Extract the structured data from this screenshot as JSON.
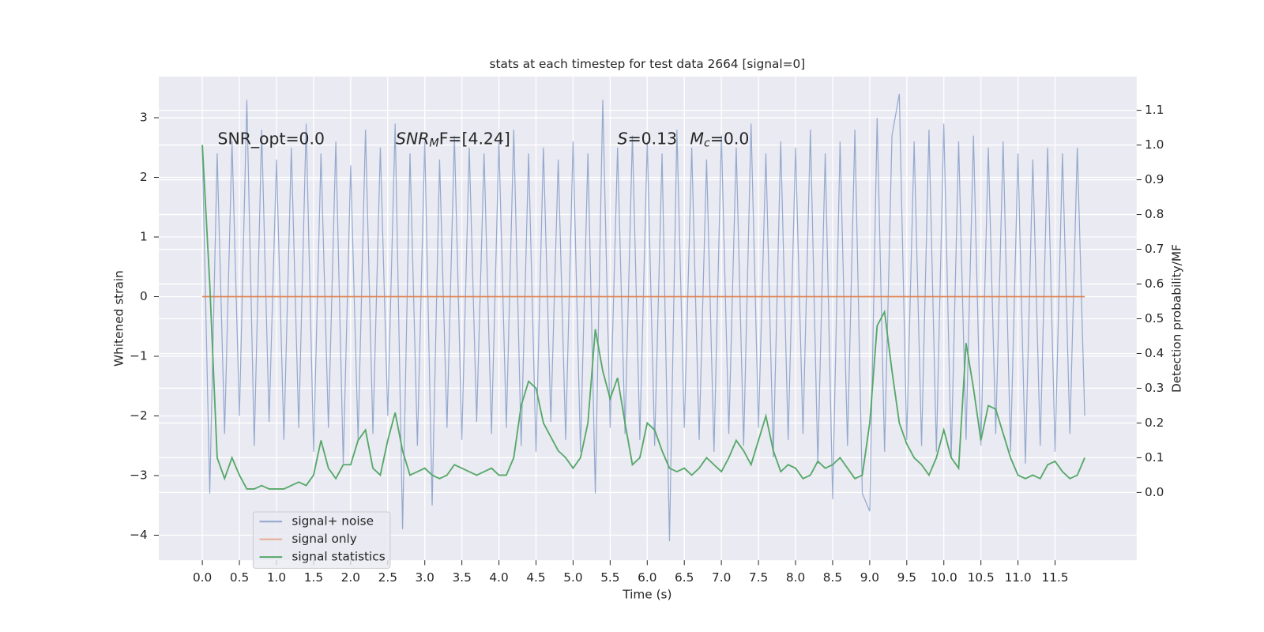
{
  "chart_data": {
    "type": "line",
    "title": "stats at each timestep for test data 2664 [signal=0]",
    "xlabel": "Time (s)",
    "ylabel": "Whitened strain",
    "y2label": "Detection probability/MF",
    "annotations": [
      [
        "SNR_opt=0.0"
      ],
      [
        "SNR",
        "M",
        "F=[4.24]"
      ],
      [
        "S",
        "=0.13",
        "M",
        "c",
        "=0.0"
      ]
    ],
    "xlim": [
      -0.587,
      12.6
    ],
    "ylim": [
      -4.42,
      3.69
    ],
    "y2lim": [
      -0.195,
      1.197
    ],
    "xticks": [
      {
        "value": 0,
        "label": "0.0"
      },
      0.5,
      {
        "value": 1,
        "label": "1.0"
      },
      1.5,
      {
        "value": 2,
        "label": "2.0"
      },
      2.5,
      {
        "value": 3,
        "label": "3.0"
      },
      3.5,
      {
        "value": 4,
        "label": "4.0"
      },
      4.5,
      {
        "value": 5,
        "label": "5.0"
      },
      5.5,
      {
        "value": 6,
        "label": "6.0"
      },
      6.5,
      {
        "value": 7,
        "label": "7.0"
      },
      7.5,
      {
        "value": 8,
        "label": "8.0"
      },
      8.5,
      {
        "value": 9,
        "label": "9.0"
      },
      9.5,
      {
        "value": 10,
        "label": "10.0"
      },
      10.5,
      {
        "value": 11,
        "label": "11.0"
      },
      11.5
    ],
    "yticks": [
      {
        "value": -4,
        "label": "−4"
      },
      {
        "value": -3,
        "label": "−3"
      },
      {
        "value": -2,
        "label": "−2"
      },
      {
        "value": -1,
        "label": "−1"
      },
      0,
      1,
      2,
      3
    ],
    "y2ticks": [
      {
        "value": 0,
        "label": "0.0"
      },
      0.1,
      0.2,
      0.3,
      0.4,
      0.5,
      0.6,
      0.7,
      0.8,
      0.9,
      {
        "value": 1,
        "label": "1.0"
      },
      1.1
    ],
    "grid": true,
    "legend": "lower left",
    "x": [
      0.0,
      0.1,
      0.2,
      0.3,
      0.4,
      0.5,
      0.6,
      0.7,
      0.8,
      0.9,
      1.0,
      1.1,
      1.2,
      1.3,
      1.4,
      1.5,
      1.6,
      1.7,
      1.8,
      1.9,
      2.0,
      2.1,
      2.2,
      2.3,
      2.4,
      2.5,
      2.6,
      2.7,
      2.8,
      2.9,
      3.0,
      3.1,
      3.2,
      3.3,
      3.4,
      3.5,
      3.6,
      3.7,
      3.8,
      3.9,
      4.0,
      4.1,
      4.2,
      4.3,
      4.4,
      4.5,
      4.6,
      4.7,
      4.8,
      4.9,
      5.0,
      5.1,
      5.2,
      5.3,
      5.4,
      5.5,
      5.6,
      5.7,
      5.8,
      5.9,
      6.0,
      6.1,
      6.2,
      6.3,
      6.4,
      6.5,
      6.6,
      6.7,
      6.8,
      6.9,
      7.0,
      7.1,
      7.2,
      7.3,
      7.4,
      7.5,
      7.6,
      7.7,
      7.8,
      7.9,
      8.0,
      8.1,
      8.2,
      8.3,
      8.4,
      8.5,
      8.6,
      8.7,
      8.8,
      8.9,
      9.0,
      9.1,
      9.2,
      9.3,
      9.4,
      9.5,
      9.6,
      9.7,
      9.8,
      9.9,
      10.0,
      10.1,
      10.2,
      10.3,
      10.4,
      10.5,
      10.6,
      10.7,
      10.8,
      10.9,
      11.0,
      11.1,
      11.2,
      11.3,
      11.4,
      11.5,
      11.6,
      11.7,
      11.8,
      11.9
    ],
    "series": [
      {
        "name": "signal+ noise",
        "color": "#4c72b0",
        "values": [
          2.5,
          -3.3,
          2.4,
          -2.3,
          2.6,
          -2.0,
          3.3,
          -2.5,
          2.8,
          -2.1,
          2.3,
          -2.4,
          2.5,
          -2.2,
          2.9,
          -2.6,
          2.4,
          -2.2,
          2.6,
          -2.8,
          2.2,
          -2.4,
          2.8,
          -2.3,
          2.5,
          -2.0,
          2.9,
          -3.9,
          2.4,
          -2.5,
          2.6,
          -3.5,
          2.3,
          -2.2,
          2.7,
          -2.4,
          2.5,
          -2.1,
          2.4,
          -2.3,
          2.6,
          -2.2,
          2.8,
          -2.5,
          2.4,
          -2.6,
          2.5,
          -2.1,
          2.3,
          -2.4,
          2.6,
          -2.6,
          2.4,
          -3.3,
          3.3,
          -2.2,
          2.5,
          -2.3,
          2.7,
          -2.4,
          2.6,
          -2.5,
          2.4,
          -4.1,
          2.8,
          -2.2,
          2.5,
          -2.4,
          2.3,
          -2.6,
          2.7,
          -2.3,
          2.5,
          -2.5,
          2.9,
          -2.2,
          2.4,
          -2.7,
          2.6,
          -2.4,
          2.5,
          -2.3,
          2.8,
          -2.8,
          2.4,
          -3.4,
          2.6,
          -2.5,
          2.8,
          -3.3,
          -3.6,
          3.0,
          -2.6,
          2.7,
          3.4,
          -2.4,
          2.6,
          -2.5,
          2.8,
          -2.6,
          2.9,
          -2.7,
          2.6,
          -2.4,
          2.7,
          -2.5,
          2.5,
          -2.3,
          2.6,
          -2.6,
          2.4,
          -2.8,
          2.3,
          -2.5,
          2.5,
          -2.6,
          2.4,
          -2.3,
          2.5,
          -2.0
        ]
      },
      {
        "name": "signal only",
        "color": "#dd8452",
        "values": [
          0,
          0,
          0,
          0,
          0,
          0,
          0,
          0,
          0,
          0,
          0,
          0,
          0,
          0,
          0,
          0,
          0,
          0,
          0,
          0,
          0,
          0,
          0,
          0,
          0,
          0,
          0,
          0,
          0,
          0,
          0,
          0,
          0,
          0,
          0,
          0,
          0,
          0,
          0,
          0,
          0,
          0,
          0,
          0,
          0,
          0,
          0,
          0,
          0,
          0,
          0,
          0,
          0,
          0,
          0,
          0,
          0,
          0,
          0,
          0,
          0,
          0,
          0,
          0,
          0,
          0,
          0,
          0,
          0,
          0,
          0,
          0,
          0,
          0,
          0,
          0,
          0,
          0,
          0,
          0,
          0,
          0,
          0,
          0,
          0,
          0,
          0,
          0,
          0,
          0,
          0,
          0,
          0,
          0,
          0,
          0,
          0,
          0,
          0,
          0,
          0,
          0,
          0,
          0,
          0,
          0,
          0,
          0,
          0,
          0,
          0,
          0,
          0,
          0,
          0,
          0,
          0,
          0,
          0,
          0
        ]
      },
      {
        "name": "signal statistics",
        "color": "#55a868",
        "axis": "y2",
        "values": [
          1.0,
          0.6,
          0.1,
          0.04,
          0.1,
          0.05,
          0.01,
          0.01,
          0.02,
          0.01,
          0.01,
          0.01,
          0.02,
          0.03,
          0.02,
          0.05,
          0.15,
          0.07,
          0.04,
          0.08,
          0.08,
          0.15,
          0.18,
          0.07,
          0.05,
          0.15,
          0.23,
          0.12,
          0.05,
          0.06,
          0.07,
          0.05,
          0.04,
          0.05,
          0.08,
          0.07,
          0.06,
          0.05,
          0.06,
          0.07,
          0.05,
          0.05,
          0.1,
          0.25,
          0.32,
          0.3,
          0.2,
          0.16,
          0.12,
          0.1,
          0.07,
          0.1,
          0.2,
          0.47,
          0.35,
          0.27,
          0.33,
          0.2,
          0.08,
          0.1,
          0.2,
          0.18,
          0.12,
          0.07,
          0.06,
          0.07,
          0.05,
          0.07,
          0.1,
          0.08,
          0.06,
          0.1,
          0.15,
          0.12,
          0.08,
          0.15,
          0.22,
          0.12,
          0.06,
          0.08,
          0.07,
          0.04,
          0.05,
          0.09,
          0.07,
          0.08,
          0.1,
          0.07,
          0.04,
          0.05,
          0.2,
          0.48,
          0.52,
          0.35,
          0.2,
          0.14,
          0.1,
          0.08,
          0.05,
          0.1,
          0.18,
          0.1,
          0.07,
          0.43,
          0.3,
          0.15,
          0.25,
          0.24,
          0.17,
          0.1,
          0.05,
          0.04,
          0.05,
          0.04,
          0.08,
          0.09,
          0.06,
          0.04,
          0.05,
          0.1
        ]
      }
    ]
  }
}
